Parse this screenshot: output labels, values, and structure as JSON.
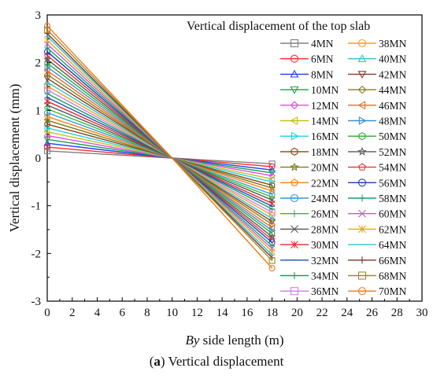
{
  "chart_data": {
    "type": "line",
    "title": "Vertical displacement of the top slab",
    "xlabel_italic": "By",
    "xlabel_rest": " side length (m)",
    "ylabel": "Vertical displacement (mm)",
    "xlim": [
      0,
      30
    ],
    "ylim": [
      -3,
      3
    ],
    "x_ticks": [
      "0",
      "2",
      "4",
      "6",
      "8",
      "10",
      "12",
      "14",
      "16",
      "18",
      "20",
      "22",
      "24",
      "26",
      "28",
      "30"
    ],
    "y_ticks": [
      "3",
      "2",
      "1",
      "0",
      "-1",
      "-2",
      "-3"
    ],
    "grid": false,
    "legend_placement": "top-right, two columns",
    "x": [
      0,
      10,
      18
    ],
    "series": [
      {
        "name": "4MN",
        "color": "#808080",
        "marker": "square",
        "values": [
          0.15,
          0,
          -0.12
        ]
      },
      {
        "name": "6MN",
        "color": "#ff2a2a",
        "marker": "circle",
        "values": [
          0.23,
          0,
          -0.18
        ]
      },
      {
        "name": "8MN",
        "color": "#1f3fff",
        "marker": "triangle-up",
        "values": [
          0.31,
          0,
          -0.25
        ]
      },
      {
        "name": "10MN",
        "color": "#19a34a",
        "marker": "triangle-down",
        "values": [
          0.39,
          0,
          -0.31
        ]
      },
      {
        "name": "12MN",
        "color": "#e44ce6",
        "marker": "diamond",
        "values": [
          0.47,
          0,
          -0.37
        ]
      },
      {
        "name": "14MN",
        "color": "#c2c21a",
        "marker": "triangle-left",
        "values": [
          0.55,
          0,
          -0.44
        ]
      },
      {
        "name": "16MN",
        "color": "#22cfe0",
        "marker": "triangle-right",
        "values": [
          0.63,
          0,
          -0.5
        ]
      },
      {
        "name": "18MN",
        "color": "#8b4513",
        "marker": "hexagon",
        "values": [
          0.71,
          0,
          -0.57
        ]
      },
      {
        "name": "20MN",
        "color": "#7a7a1a",
        "marker": "star",
        "values": [
          0.79,
          0,
          -0.63
        ]
      },
      {
        "name": "22MN",
        "color": "#ff7f0e",
        "marker": "pentagon",
        "values": [
          0.87,
          0,
          -0.69
        ]
      },
      {
        "name": "24MN",
        "color": "#3399dd",
        "marker": "circle-dot",
        "values": [
          0.95,
          0,
          -0.76
        ]
      },
      {
        "name": "26MN",
        "color": "#33bb33",
        "marker": "plus",
        "values": [
          1.03,
          0,
          -0.82
        ]
      },
      {
        "name": "28MN",
        "color": "#555555",
        "marker": "cross",
        "values": [
          1.11,
          0,
          -0.88
        ]
      },
      {
        "name": "30MN",
        "color": "#e8262a",
        "marker": "asterisk",
        "values": [
          1.19,
          0,
          -0.95
        ]
      },
      {
        "name": "32MN",
        "color": "#1a4fb3",
        "marker": "dash",
        "values": [
          1.27,
          0,
          -1.01
        ]
      },
      {
        "name": "34MN",
        "color": "#1a9e5c",
        "marker": "plus",
        "values": [
          1.35,
          0,
          -1.07
        ]
      },
      {
        "name": "36MN",
        "color": "#c77fe8",
        "marker": "square",
        "values": [
          1.43,
          0,
          -1.14
        ]
      },
      {
        "name": "38MN",
        "color": "#f0a020",
        "marker": "circle",
        "values": [
          1.51,
          0,
          -1.2
        ]
      },
      {
        "name": "40MN",
        "color": "#2ec4c4",
        "marker": "triangle-up",
        "values": [
          1.59,
          0,
          -1.27
        ]
      },
      {
        "name": "42MN",
        "color": "#8b3a2a",
        "marker": "triangle-down",
        "values": [
          1.67,
          0,
          -1.33
        ]
      },
      {
        "name": "44MN",
        "color": "#8a7d1a",
        "marker": "diamond",
        "values": [
          1.75,
          0,
          -1.39
        ]
      },
      {
        "name": "46MN",
        "color": "#ee6a1e",
        "marker": "triangle-left",
        "values": [
          1.83,
          0,
          -1.46
        ]
      },
      {
        "name": "48MN",
        "color": "#3c8fd8",
        "marker": "triangle-right",
        "values": [
          1.91,
          0,
          -1.52
        ]
      },
      {
        "name": "50MN",
        "color": "#2ea82e",
        "marker": "hexagon",
        "values": [
          1.99,
          0,
          -1.58
        ]
      },
      {
        "name": "52MN",
        "color": "#5a5a5a",
        "marker": "star",
        "values": [
          2.07,
          0,
          -1.65
        ]
      },
      {
        "name": "54MN",
        "color": "#e03a3a",
        "marker": "pentagon",
        "values": [
          2.15,
          0,
          -1.71
        ]
      },
      {
        "name": "56MN",
        "color": "#1d3db0",
        "marker": "circle-dot",
        "values": [
          2.23,
          0,
          -1.77
        ]
      },
      {
        "name": "58MN",
        "color": "#18a068",
        "marker": "plus",
        "values": [
          2.31,
          0,
          -1.84
        ]
      },
      {
        "name": "60MN",
        "color": "#c85ad0",
        "marker": "cross",
        "values": [
          2.39,
          0,
          -1.9
        ]
      },
      {
        "name": "62MN",
        "color": "#e6a51a",
        "marker": "asterisk",
        "values": [
          2.47,
          0,
          -1.96
        ]
      },
      {
        "name": "64MN",
        "color": "#30c0d8",
        "marker": "dash",
        "values": [
          2.55,
          0,
          -2.03
        ]
      },
      {
        "name": "66MN",
        "color": "#7a3a2a",
        "marker": "plus",
        "values": [
          2.61,
          0,
          -2.09
        ]
      },
      {
        "name": "68MN",
        "color": "#9a8a2a",
        "marker": "square",
        "values": [
          2.69,
          0,
          -2.15
        ]
      },
      {
        "name": "70MN",
        "color": "#f07a1a",
        "marker": "circle",
        "values": [
          2.77,
          0,
          -2.31
        ]
      }
    ]
  },
  "caption": {
    "label": "a",
    "text": " Vertical displacement"
  }
}
